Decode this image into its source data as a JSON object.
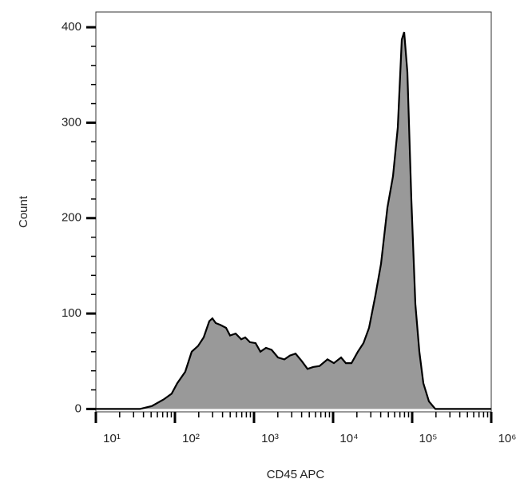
{
  "chart_data": {
    "type": "area",
    "xlabel": "CD45  APC",
    "ylabel": "Count",
    "xscale": "log",
    "xlim": [
      10,
      1000000
    ],
    "ylim": [
      -3,
      416
    ],
    "xticks": [
      {
        "value": 10,
        "label": "10¹"
      },
      {
        "value": 100,
        "label": "10²"
      },
      {
        "value": 1000,
        "label": "10³"
      },
      {
        "value": 10000,
        "label": "10⁴"
      },
      {
        "value": 100000,
        "label": "10⁵"
      },
      {
        "value": 1000000,
        "label": "10⁶"
      }
    ],
    "yticks": [
      0,
      100,
      200,
      300,
      400
    ],
    "color": "#999999",
    "line_color": "#000000",
    "x": [
      10,
      36,
      51,
      72,
      91,
      107,
      135,
      163,
      196,
      231,
      272,
      298,
      328,
      377,
      443,
      498,
      586,
      689,
      774,
      889,
      1047,
      1204,
      1418,
      1668,
      2010,
      2421,
      2851,
      3352,
      4038,
      4750,
      5589,
      6734,
      8490,
      10240,
      12610,
      14520,
      17070,
      20560,
      24200,
      28490,
      34290,
      40360,
      48600,
      57260,
      65790,
      73940,
      79250,
      86950,
      97700,
      109700,
      123300,
      138500,
      162900,
      196300,
      278000,
      1000000
    ],
    "values": [
      0,
      0,
      3,
      10,
      16,
      27,
      39,
      60,
      66,
      75,
      92,
      95,
      90,
      88,
      85,
      77,
      79,
      73,
      75,
      70,
      69,
      60,
      64,
      62,
      54,
      52,
      56,
      58,
      50,
      42,
      44,
      45,
      52,
      48,
      54,
      48,
      48,
      60,
      69,
      85,
      119,
      152,
      211,
      244,
      295,
      387,
      395,
      353,
      219,
      110,
      60,
      27,
      8,
      0,
      0,
      0
    ]
  }
}
